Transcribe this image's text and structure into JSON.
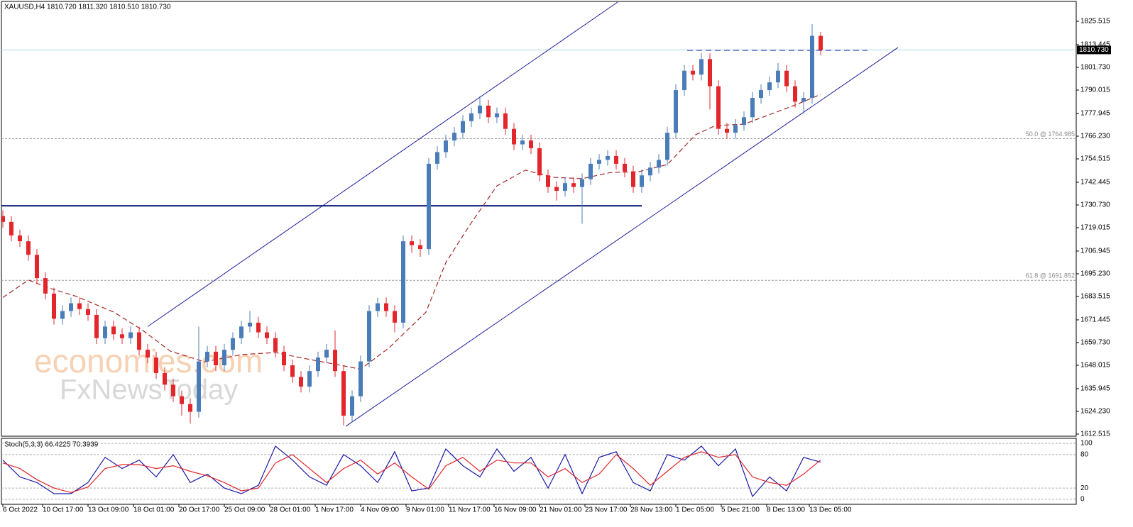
{
  "chart_data": {
    "type": "candlestick",
    "title": "XAUUSD,H4  1810.720 1811.320 1810.510 1810.730",
    "up_color": "#4a7db8",
    "down_color": "#e3262c",
    "xlim": [
      -0.5,
      378
    ],
    "ylim": [
      1611.4,
      1836.5
    ],
    "x": [
      0,
      3,
      6,
      9,
      12,
      15,
      18,
      21,
      24,
      27,
      30,
      33,
      36,
      39,
      42,
      45,
      48,
      51,
      54,
      57,
      60,
      63,
      66,
      69,
      72,
      75,
      78,
      81,
      84,
      87,
      90,
      93,
      96,
      99,
      102,
      105,
      108,
      111,
      114,
      117,
      120,
      123,
      126,
      129,
      132,
      135,
      138,
      141,
      144,
      147,
      150,
      153,
      156,
      159,
      162,
      165,
      168,
      171,
      174,
      177,
      180,
      183,
      186,
      189,
      192,
      195,
      198,
      201,
      204,
      207,
      210,
      213,
      216,
      219,
      222,
      225,
      228,
      231,
      234,
      237,
      240,
      243,
      246,
      249,
      252,
      255,
      258,
      261,
      264,
      267,
      270,
      273,
      276,
      279,
      282,
      285,
      288
    ],
    "open": [
      1725,
      1722,
      1715,
      1712,
      1705,
      1693,
      1685,
      1672,
      1676,
      1680,
      1677,
      1674,
      1662,
      1668,
      1664,
      1662,
      1665,
      1656,
      1652,
      1644,
      1638,
      1632,
      1628,
      1624,
      1650,
      1655,
      1648,
      1656,
      1662,
      1668,
      1670,
      1665,
      1662,
      1655,
      1648,
      1642,
      1637,
      1645,
      1652,
      1656,
      1645,
      1622,
      1632,
      1650,
      1676,
      1680,
      1676,
      1670,
      1712,
      1710,
      1708,
      1752,
      1758,
      1764,
      1768,
      1774,
      1778,
      1782,
      1776,
      1778,
      1770,
      1762,
      1764,
      1760,
      1746,
      1740,
      1738,
      1742,
      1740,
      1744,
      1752,
      1754,
      1756,
      1752,
      1748,
      1740,
      1746,
      1750,
      1754,
      1768,
      1790,
      1800,
      1798,
      1806,
      1792,
      1770,
      1768,
      1772,
      1776,
      1786,
      1790,
      1794,
      1800,
      1792,
      1784,
      1786,
      1818
    ],
    "high": [
      1728,
      1725,
      1718,
      1715,
      1708,
      1696,
      1688,
      1679,
      1683,
      1683,
      1680,
      1677,
      1671,
      1671,
      1667,
      1668,
      1668,
      1659,
      1655,
      1647,
      1641,
      1635,
      1631,
      1668,
      1658,
      1658,
      1659,
      1665,
      1671,
      1676,
      1673,
      1668,
      1665,
      1658,
      1651,
      1645,
      1648,
      1655,
      1659,
      1666,
      1648,
      1635,
      1653,
      1679,
      1683,
      1683,
      1679,
      1715,
      1715,
      1713,
      1755,
      1761,
      1767,
      1771,
      1777,
      1781,
      1787,
      1785,
      1781,
      1781,
      1773,
      1767,
      1767,
      1763,
      1749,
      1743,
      1745,
      1745,
      1747,
      1755,
      1757,
      1759,
      1759,
      1755,
      1751,
      1749,
      1753,
      1757,
      1771,
      1793,
      1803,
      1803,
      1809,
      1809,
      1795,
      1773,
      1775,
      1779,
      1789,
      1793,
      1797,
      1804,
      1803,
      1795,
      1789,
      1824,
      1820
    ],
    "low": [
      1719,
      1712,
      1709,
      1702,
      1690,
      1682,
      1669,
      1669,
      1673,
      1674,
      1671,
      1659,
      1659,
      1661,
      1659,
      1659,
      1653,
      1649,
      1641,
      1635,
      1629,
      1622,
      1618,
      1621,
      1647,
      1645,
      1645,
      1653,
      1659,
      1665,
      1662,
      1659,
      1652,
      1645,
      1639,
      1634,
      1634,
      1642,
      1649,
      1642,
      1617,
      1619,
      1629,
      1647,
      1673,
      1673,
      1665,
      1667,
      1706,
      1704,
      1705,
      1749,
      1755,
      1761,
      1765,
      1771,
      1775,
      1773,
      1773,
      1767,
      1759,
      1759,
      1757,
      1743,
      1737,
      1733,
      1735,
      1737,
      1721,
      1741,
      1749,
      1751,
      1749,
      1745,
      1737,
      1737,
      1743,
      1747,
      1751,
      1765,
      1787,
      1795,
      1795,
      1780,
      1767,
      1765,
      1765,
      1769,
      1773,
      1783,
      1787,
      1791,
      1789,
      1781,
      1778,
      1783,
      1808
    ],
    "close": [
      1722,
      1715,
      1712,
      1705,
      1693,
      1685,
      1672,
      1676,
      1680,
      1677,
      1674,
      1662,
      1668,
      1664,
      1662,
      1665,
      1656,
      1652,
      1644,
      1638,
      1632,
      1628,
      1624,
      1650,
      1655,
      1648,
      1656,
      1662,
      1668,
      1670,
      1665,
      1662,
      1655,
      1648,
      1642,
      1637,
      1645,
      1652,
      1656,
      1645,
      1622,
      1632,
      1650,
      1676,
      1680,
      1676,
      1670,
      1712,
      1710,
      1708,
      1752,
      1758,
      1764,
      1768,
      1774,
      1778,
      1782,
      1776,
      1778,
      1770,
      1762,
      1764,
      1760,
      1746,
      1740,
      1738,
      1742,
      1740,
      1744,
      1752,
      1754,
      1756,
      1752,
      1748,
      1740,
      1746,
      1750,
      1754,
      1768,
      1790,
      1800,
      1798,
      1806,
      1792,
      1770,
      1768,
      1772,
      1776,
      1786,
      1790,
      1794,
      1800,
      1792,
      1784,
      1786,
      1818,
      1810.73
    ],
    "yticks": [
      {
        "value": 1825.515,
        "label": "1825.515"
      },
      {
        "value": 1813.445,
        "label": "1813.445"
      },
      {
        "value": 1801.73,
        "label": "1801.730"
      },
      {
        "value": 1790.015,
        "label": "1790.015"
      },
      {
        "value": 1777.945,
        "label": "1777.945"
      },
      {
        "value": 1766.23,
        "label": "1766.230"
      },
      {
        "value": 1754.515,
        "label": "1754.515"
      },
      {
        "value": 1742.445,
        "label": "1742.445"
      },
      {
        "value": 1730.73,
        "label": "1730.730"
      },
      {
        "value": 1719.015,
        "label": "1719.015"
      },
      {
        "value": 1706.945,
        "label": "1706.945"
      },
      {
        "value": 1695.23,
        "label": "1695.230"
      },
      {
        "value": 1683.515,
        "label": "1683.515"
      },
      {
        "value": 1671.445,
        "label": "1671.445"
      },
      {
        "value": 1659.73,
        "label": "1659.730"
      },
      {
        "value": 1648.015,
        "label": "1648.015"
      },
      {
        "value": 1635.945,
        "label": "1635.945"
      },
      {
        "value": 1624.23,
        "label": "1624.230"
      },
      {
        "value": 1612.515,
        "label": "1612.515"
      }
    ],
    "xticks": [
      {
        "value": 0,
        "label": "6 Oct 2022"
      },
      {
        "value": 14,
        "label": "10 Oct 17:00"
      },
      {
        "value": 30,
        "label": "13 Oct 09:00"
      },
      {
        "value": 46,
        "label": "18 Oct 01:00"
      },
      {
        "value": 62,
        "label": "20 Oct 17:00"
      },
      {
        "value": 78,
        "label": "25 Oct 09:00"
      },
      {
        "value": 94,
        "label": "28 Oct 01:00"
      },
      {
        "value": 110,
        "label": "1 Nov 17:00"
      },
      {
        "value": 126,
        "label": "4 Nov 09:00"
      },
      {
        "value": 142,
        "label": "9 Nov 01:00"
      },
      {
        "value": 157,
        "label": "11 Nov 17:00"
      },
      {
        "value": 173,
        "label": "16 Nov 09:00"
      },
      {
        "value": 189,
        "label": "21 Nov 01:00"
      },
      {
        "value": 205,
        "label": "23 Nov 17:00"
      },
      {
        "value": 221,
        "label": "28 Nov 13:00"
      },
      {
        "value": 237,
        "label": "1 Dec 05:00"
      },
      {
        "value": 253,
        "label": "5 Dec 21:00"
      },
      {
        "value": 269,
        "label": "8 Dec 13:00"
      },
      {
        "value": 284,
        "label": "13 Dec 05:00"
      }
    ],
    "ma": {
      "color": "#a52a2a",
      "x": [
        0,
        9,
        16,
        26,
        39,
        49,
        59,
        71,
        84,
        96,
        106,
        119,
        126,
        136,
        149,
        156,
        164,
        174,
        184,
        194,
        204,
        214,
        224,
        234,
        244,
        251,
        261,
        271,
        279,
        288
      ],
      "values": [
        1683,
        1692,
        1688,
        1683.5,
        1675.5,
        1666.3,
        1655.3,
        1649.8,
        1653.5,
        1654.6,
        1651.6,
        1648,
        1646,
        1657,
        1675.4,
        1701,
        1719.4,
        1740.6,
        1748.7,
        1745,
        1744.3,
        1747.5,
        1747.9,
        1751.6,
        1767,
        1771.7,
        1772.4,
        1777.9,
        1782.3,
        1787.8
      ]
    },
    "levels": [
      {
        "value": 1764.985,
        "label": "50.0 @ 1764.985"
      },
      {
        "value": 1691.852,
        "label": "61.8 @ 1691.852"
      }
    ],
    "current": {
      "value": 1810.73,
      "label": "1810.730",
      "color": "#add8e6"
    },
    "trendlines": [
      {
        "x": [
          51,
          216.5
        ],
        "y": [
          1668,
          1835.4
        ],
        "color": "#1f1f9c",
        "style": "solid"
      },
      {
        "x": [
          120.75,
          315.25
        ],
        "y": [
          1616.5,
          1812
        ],
        "color": "#1f1f9c",
        "style": "solid"
      },
      {
        "x": [
          -0.5,
          225
        ],
        "y": [
          1730.3,
          1730.3
        ],
        "color": "#0a1a7a",
        "style": "thick"
      },
      {
        "x": [
          241,
          304.5
        ],
        "y": [
          1810.5,
          1810.5
        ],
        "color": "#1f1f9c",
        "style": "dashed"
      }
    ],
    "watermark": [
      "economies.com",
      "FxNewsToday"
    ],
    "stoch": {
      "title": "Stoch(5,3,3) 66.4225 70.3939",
      "ylim": [
        -9,
        109
      ],
      "yticks": [
        100,
        80,
        20,
        0
      ],
      "x": [
        0,
        6,
        12,
        18,
        24,
        30,
        36,
        42,
        48,
        54,
        60,
        66,
        72,
        78,
        84,
        90,
        96,
        102,
        108,
        114,
        120,
        126,
        132,
        138,
        144,
        150,
        156,
        162,
        168,
        174,
        180,
        186,
        192,
        198,
        204,
        210,
        216,
        222,
        228,
        234,
        240,
        246,
        252,
        258,
        264,
        270,
        276,
        282,
        288
      ],
      "series": [
        {
          "color": "#1a1aa6",
          "values": [
            70,
            40,
            30,
            10,
            10,
            30,
            75,
            55,
            70,
            40,
            80,
            30,
            45,
            20,
            10,
            25,
            95,
            70,
            40,
            25,
            80,
            60,
            30,
            85,
            15,
            20,
            90,
            60,
            40,
            90,
            50,
            75,
            20,
            80,
            10,
            75,
            85,
            30,
            15,
            80,
            70,
            95,
            60,
            90,
            5,
            40,
            15,
            75,
            66.42
          ]
        },
        {
          "color": "#e3262c",
          "values": [
            65,
            55,
            35,
            20,
            12,
            22,
            55,
            62,
            62,
            55,
            60,
            50,
            42,
            30,
            15,
            20,
            65,
            80,
            55,
            30,
            55,
            70,
            45,
            65,
            40,
            18,
            60,
            75,
            50,
            70,
            65,
            65,
            40,
            55,
            30,
            45,
            80,
            55,
            25,
            50,
            75,
            85,
            75,
            80,
            40,
            30,
            25,
            45,
            70.39
          ]
        }
      ]
    }
  }
}
